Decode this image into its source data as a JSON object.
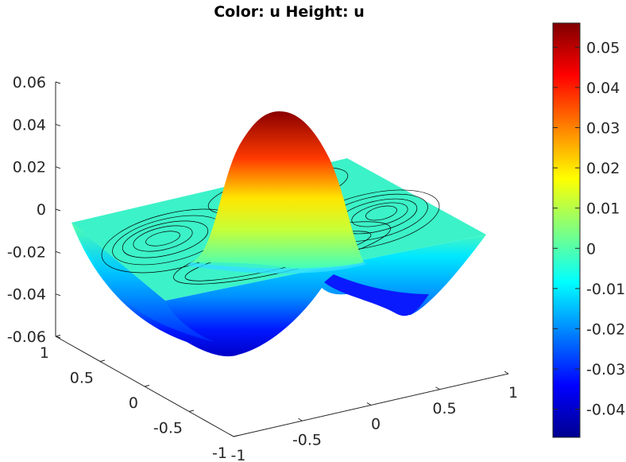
{
  "chart_data": {
    "type": "surface",
    "title": "Color: u  Height: u",
    "xlabel": "",
    "ylabel": "",
    "zlabel": "",
    "colormap": "jet",
    "x_range": [
      -1,
      1
    ],
    "y_range": [
      -1,
      1
    ],
    "z_range": [
      -0.06,
      0.06
    ],
    "x_ticks": [
      "-1",
      "-0.5",
      "0",
      "0.5",
      "1"
    ],
    "y_ticks": [
      "-1",
      "-0.5",
      "0",
      "0.5",
      "1"
    ],
    "z_ticks": [
      "-0.06",
      "-0.04",
      "-0.02",
      "0",
      "0.02",
      "0.04",
      "0.06"
    ],
    "colorbar": {
      "range": [
        -0.047,
        0.056
      ],
      "ticks": [
        "-0.04",
        "-0.03",
        "-0.02",
        "-0.01",
        "0",
        "0.01",
        "0.02",
        "0.03",
        "0.04",
        "0.05"
      ]
    },
    "surface": {
      "center_peak": 0.056,
      "edge_minimum": -0.047,
      "contours_on_base": true
    }
  }
}
